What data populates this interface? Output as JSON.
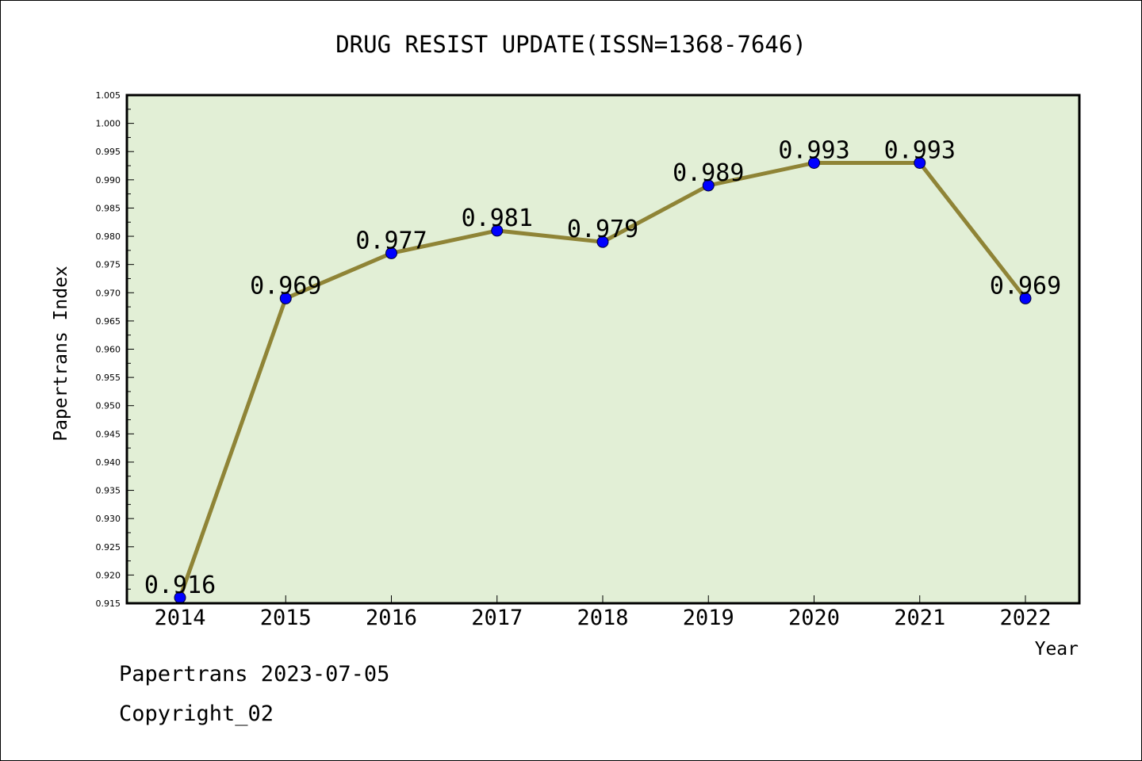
{
  "chart_data": {
    "type": "line",
    "title": "DRUG RESIST UPDATE(ISSN=1368-7646)",
    "xlabel": "Year",
    "ylabel": "Papertrans Index",
    "categories": [
      "2014",
      "2015",
      "2016",
      "2017",
      "2018",
      "2019",
      "2020",
      "2021",
      "2022"
    ],
    "series": [
      {
        "values": [
          0.916,
          0.969,
          0.977,
          0.981,
          0.979,
          0.989,
          0.993,
          0.993,
          0.969
        ]
      }
    ],
    "data_labels": [
      "0.916",
      "0.969",
      "0.977",
      "0.981",
      "0.979",
      "0.989",
      "0.993",
      "0.993",
      "0.969"
    ],
    "ylim": [
      0.915,
      1.005
    ],
    "yticks": [
      "0.915",
      "0.920",
      "0.925",
      "0.930",
      "0.935",
      "0.940",
      "0.945",
      "0.950",
      "0.955",
      "0.960",
      "0.965",
      "0.970",
      "0.975",
      "0.980",
      "0.985",
      "0.990",
      "0.995",
      "1.000",
      "1.005"
    ],
    "grid": false,
    "colors": {
      "plot_background": "#e2efd6",
      "line": "#8f8436",
      "marker": "#0000ff"
    }
  },
  "footer": {
    "line1": "Papertrans 2023-07-05",
    "line2": "Copyright_02"
  }
}
